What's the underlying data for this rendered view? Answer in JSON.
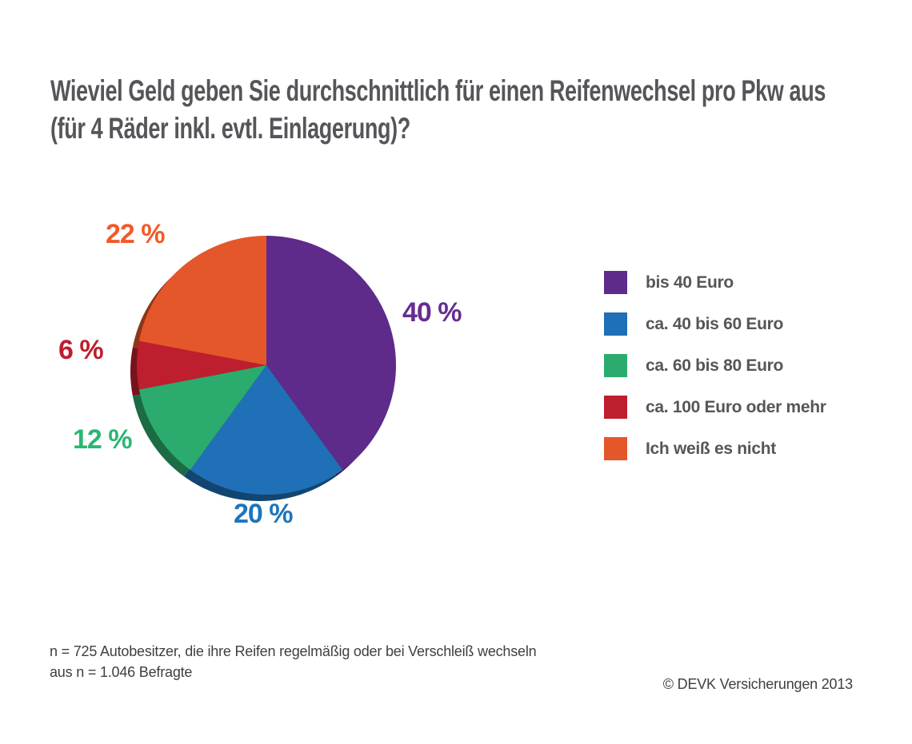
{
  "title_lines": [
    "Wieviel Geld geben Sie durchschnittlich für einen Reifenwechsel pro Pkw aus",
    "(für 4 Räder inkl. evtl. Einlagerung)?"
  ],
  "chart_data": {
    "type": "pie",
    "title": "Wieviel Geld geben Sie durchschnittlich für einen Reifenwechsel pro Pkw aus (für 4 Räder inkl. evtl. Einlagerung)?",
    "start_angle_deg": 0,
    "direction": "clockwise",
    "legend_position": "right",
    "effect": "3d-offset-shadow-lower-left",
    "segments": [
      {
        "label": "bis 40 Euro",
        "value": 40,
        "value_label": "40 %",
        "color": "#5e2b8a",
        "label_color": "#662d91"
      },
      {
        "label": "ca. 40 bis 60 Euro",
        "value": 20,
        "value_label": "20 %",
        "color": "#1f70b7",
        "label_color": "#1c75bc"
      },
      {
        "label": "ca. 60 bis 80 Euro",
        "value": 12,
        "value_label": "12 %",
        "color": "#2bac6e",
        "label_color": "#2bb673"
      },
      {
        "label": "ca. 100 Euro oder mehr",
        "value": 6,
        "value_label": "6 %",
        "color": "#be1e2d",
        "label_color": "#be1e2d"
      },
      {
        "label": "Ich weiß es nicht",
        "value": 22,
        "value_label": "22 %",
        "color": "#e4572b",
        "label_color": "#f15a29"
      }
    ]
  },
  "footnote": {
    "line1": "n = 725 Autobesitzer, die ihre Reifen regelmäßig oder bei Verschleiß wechseln",
    "line2": "aus n = 1.046 Befragte"
  },
  "copyright": "© DEVK Versicherungen 2013",
  "colors": {
    "title_text": "#55565a",
    "legend_text": "#55565a",
    "footnote_text": "#3f4042",
    "background": "#ffffff"
  }
}
